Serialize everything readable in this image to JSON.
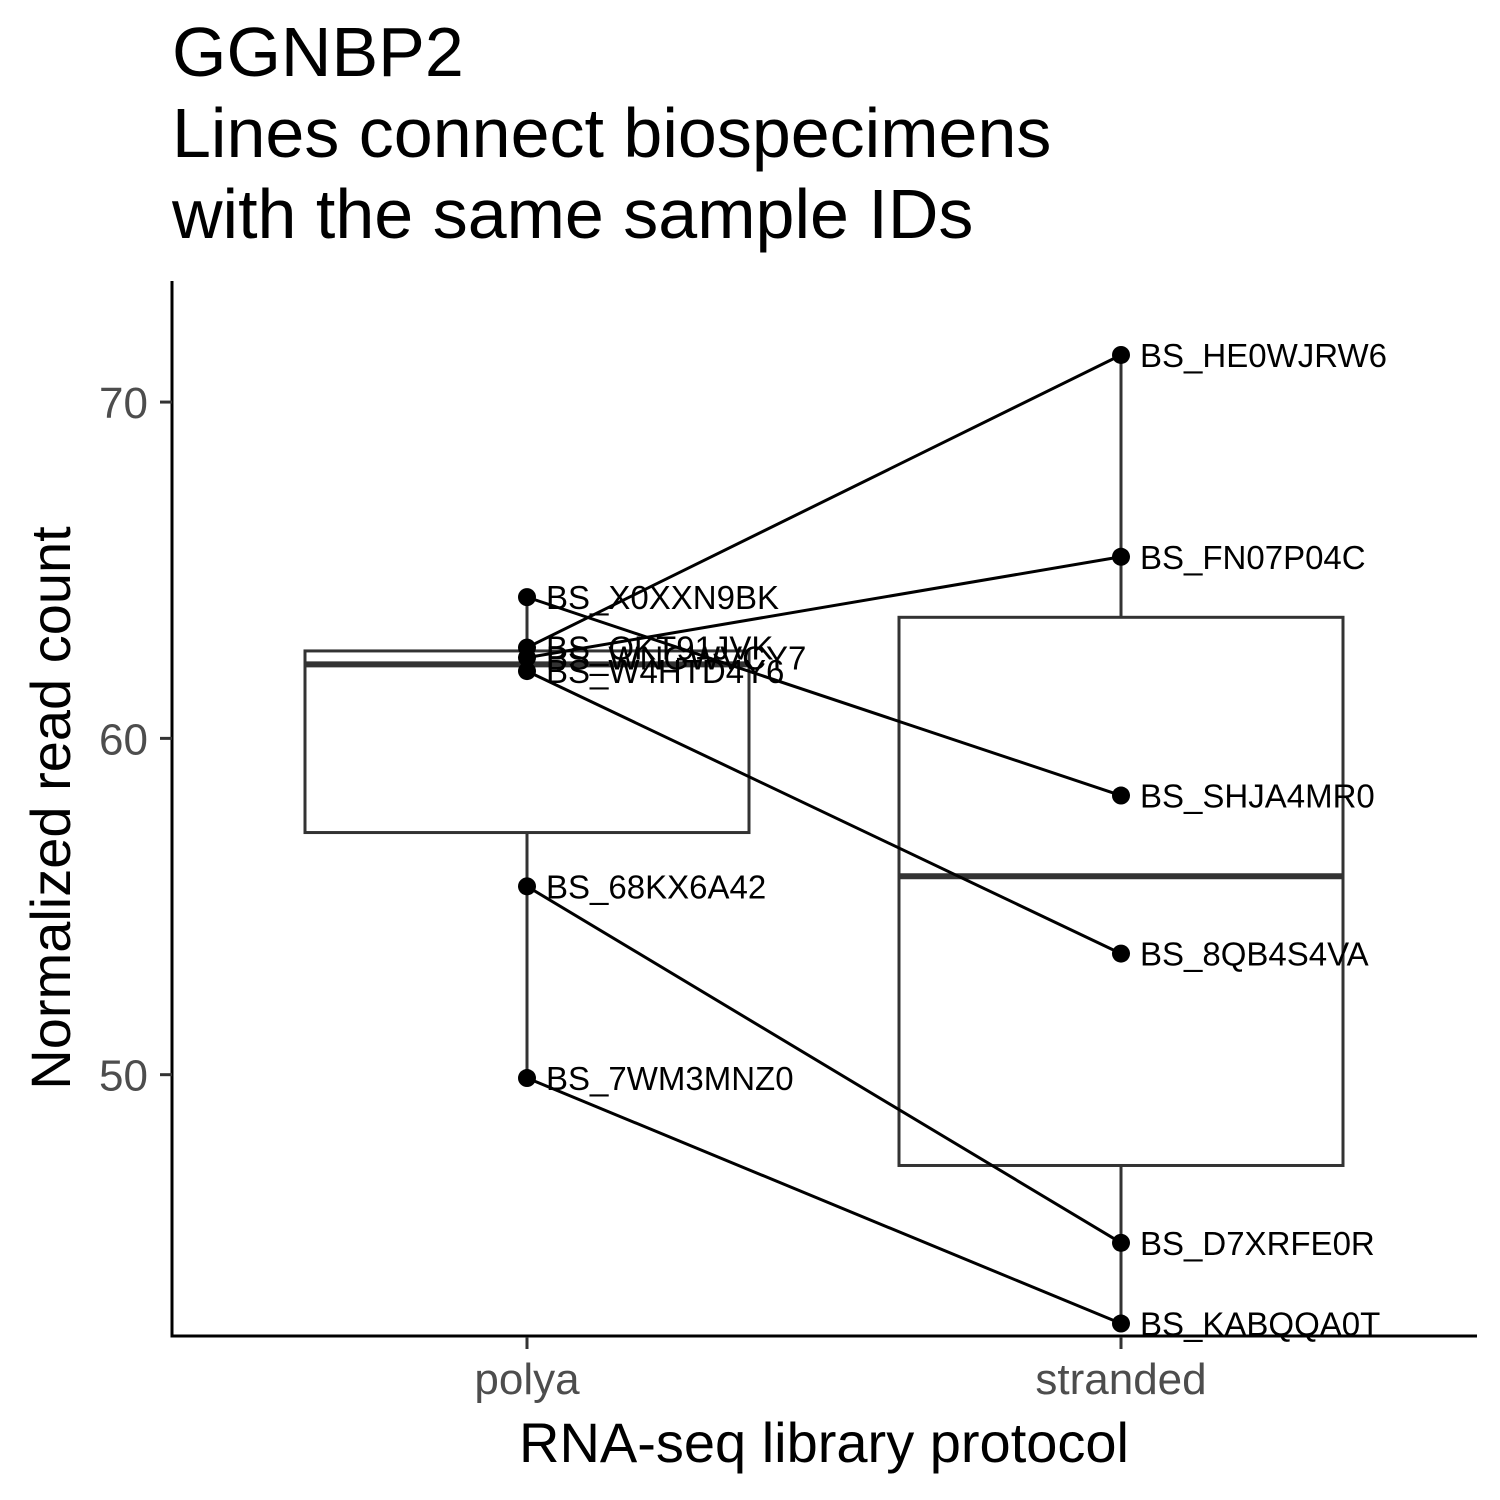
{
  "chart_data": {
    "type": "box",
    "title": [
      "GGNBP2",
      "Lines connect biospecimens",
      "with the same sample IDs"
    ],
    "xlabel": "RNA-seq library protocol",
    "ylabel": "Normalized read count",
    "categories": [
      "polya",
      "stranded"
    ],
    "y_ticks": [
      50,
      60,
      70
    ],
    "ylim": [
      42.2,
      73.6
    ],
    "grid": false,
    "legend": "none",
    "boxes": [
      {
        "category": "polya",
        "lower_whisker": 49.9,
        "q1": 57.2,
        "median": 62.2,
        "q3": 62.6,
        "upper_whisker": 64.2
      },
      {
        "category": "stranded",
        "lower_whisker": 42.6,
        "q1": 47.3,
        "median": 55.9,
        "q3": 63.6,
        "upper_whisker": 71.4
      }
    ],
    "points": [
      {
        "id": "BS_X0XXN9BK",
        "category": "polya",
        "value": 64.2
      },
      {
        "id": "BS_QKT91JVK",
        "category": "polya",
        "value": 62.7
      },
      {
        "id": "BS_WNGWVCY7",
        "category": "polya",
        "value": 62.4
      },
      {
        "id": "BS_W4HTD4Y6",
        "category": "polya",
        "value": 62.0
      },
      {
        "id": "BS_68KX6A42",
        "category": "polya",
        "value": 55.6
      },
      {
        "id": "BS_7WM3MNZ0",
        "category": "polya",
        "value": 49.9
      },
      {
        "id": "BS_HE0WJRW6",
        "category": "stranded",
        "value": 71.4
      },
      {
        "id": "BS_FN07P04C",
        "category": "stranded",
        "value": 65.4
      },
      {
        "id": "BS_SHJA4MR0",
        "category": "stranded",
        "value": 58.3
      },
      {
        "id": "BS_8QB4S4VA",
        "category": "stranded",
        "value": 53.6
      },
      {
        "id": "BS_D7XRFE0R",
        "category": "stranded",
        "value": 45.0
      },
      {
        "id": "BS_KABQQA0T",
        "category": "stranded",
        "value": 42.6
      }
    ],
    "pairs": [
      [
        "BS_QKT91JVK",
        "BS_HE0WJRW6"
      ],
      [
        "BS_WNGWVCY7",
        "BS_FN07P04C"
      ],
      [
        "BS_X0XXN9BK",
        "BS_SHJA4MR0"
      ],
      [
        "BS_W4HTD4Y6",
        "BS_8QB4S4VA"
      ],
      [
        "BS_68KX6A42",
        "BS_D7XRFE0R"
      ],
      [
        "BS_7WM3MNZ0",
        "BS_KABQQA0T"
      ]
    ],
    "colors": {
      "box": "#333333",
      "line": "#000000",
      "point": "#000000",
      "axis": "#000000",
      "tick_label": "#4d4d4d"
    }
  }
}
